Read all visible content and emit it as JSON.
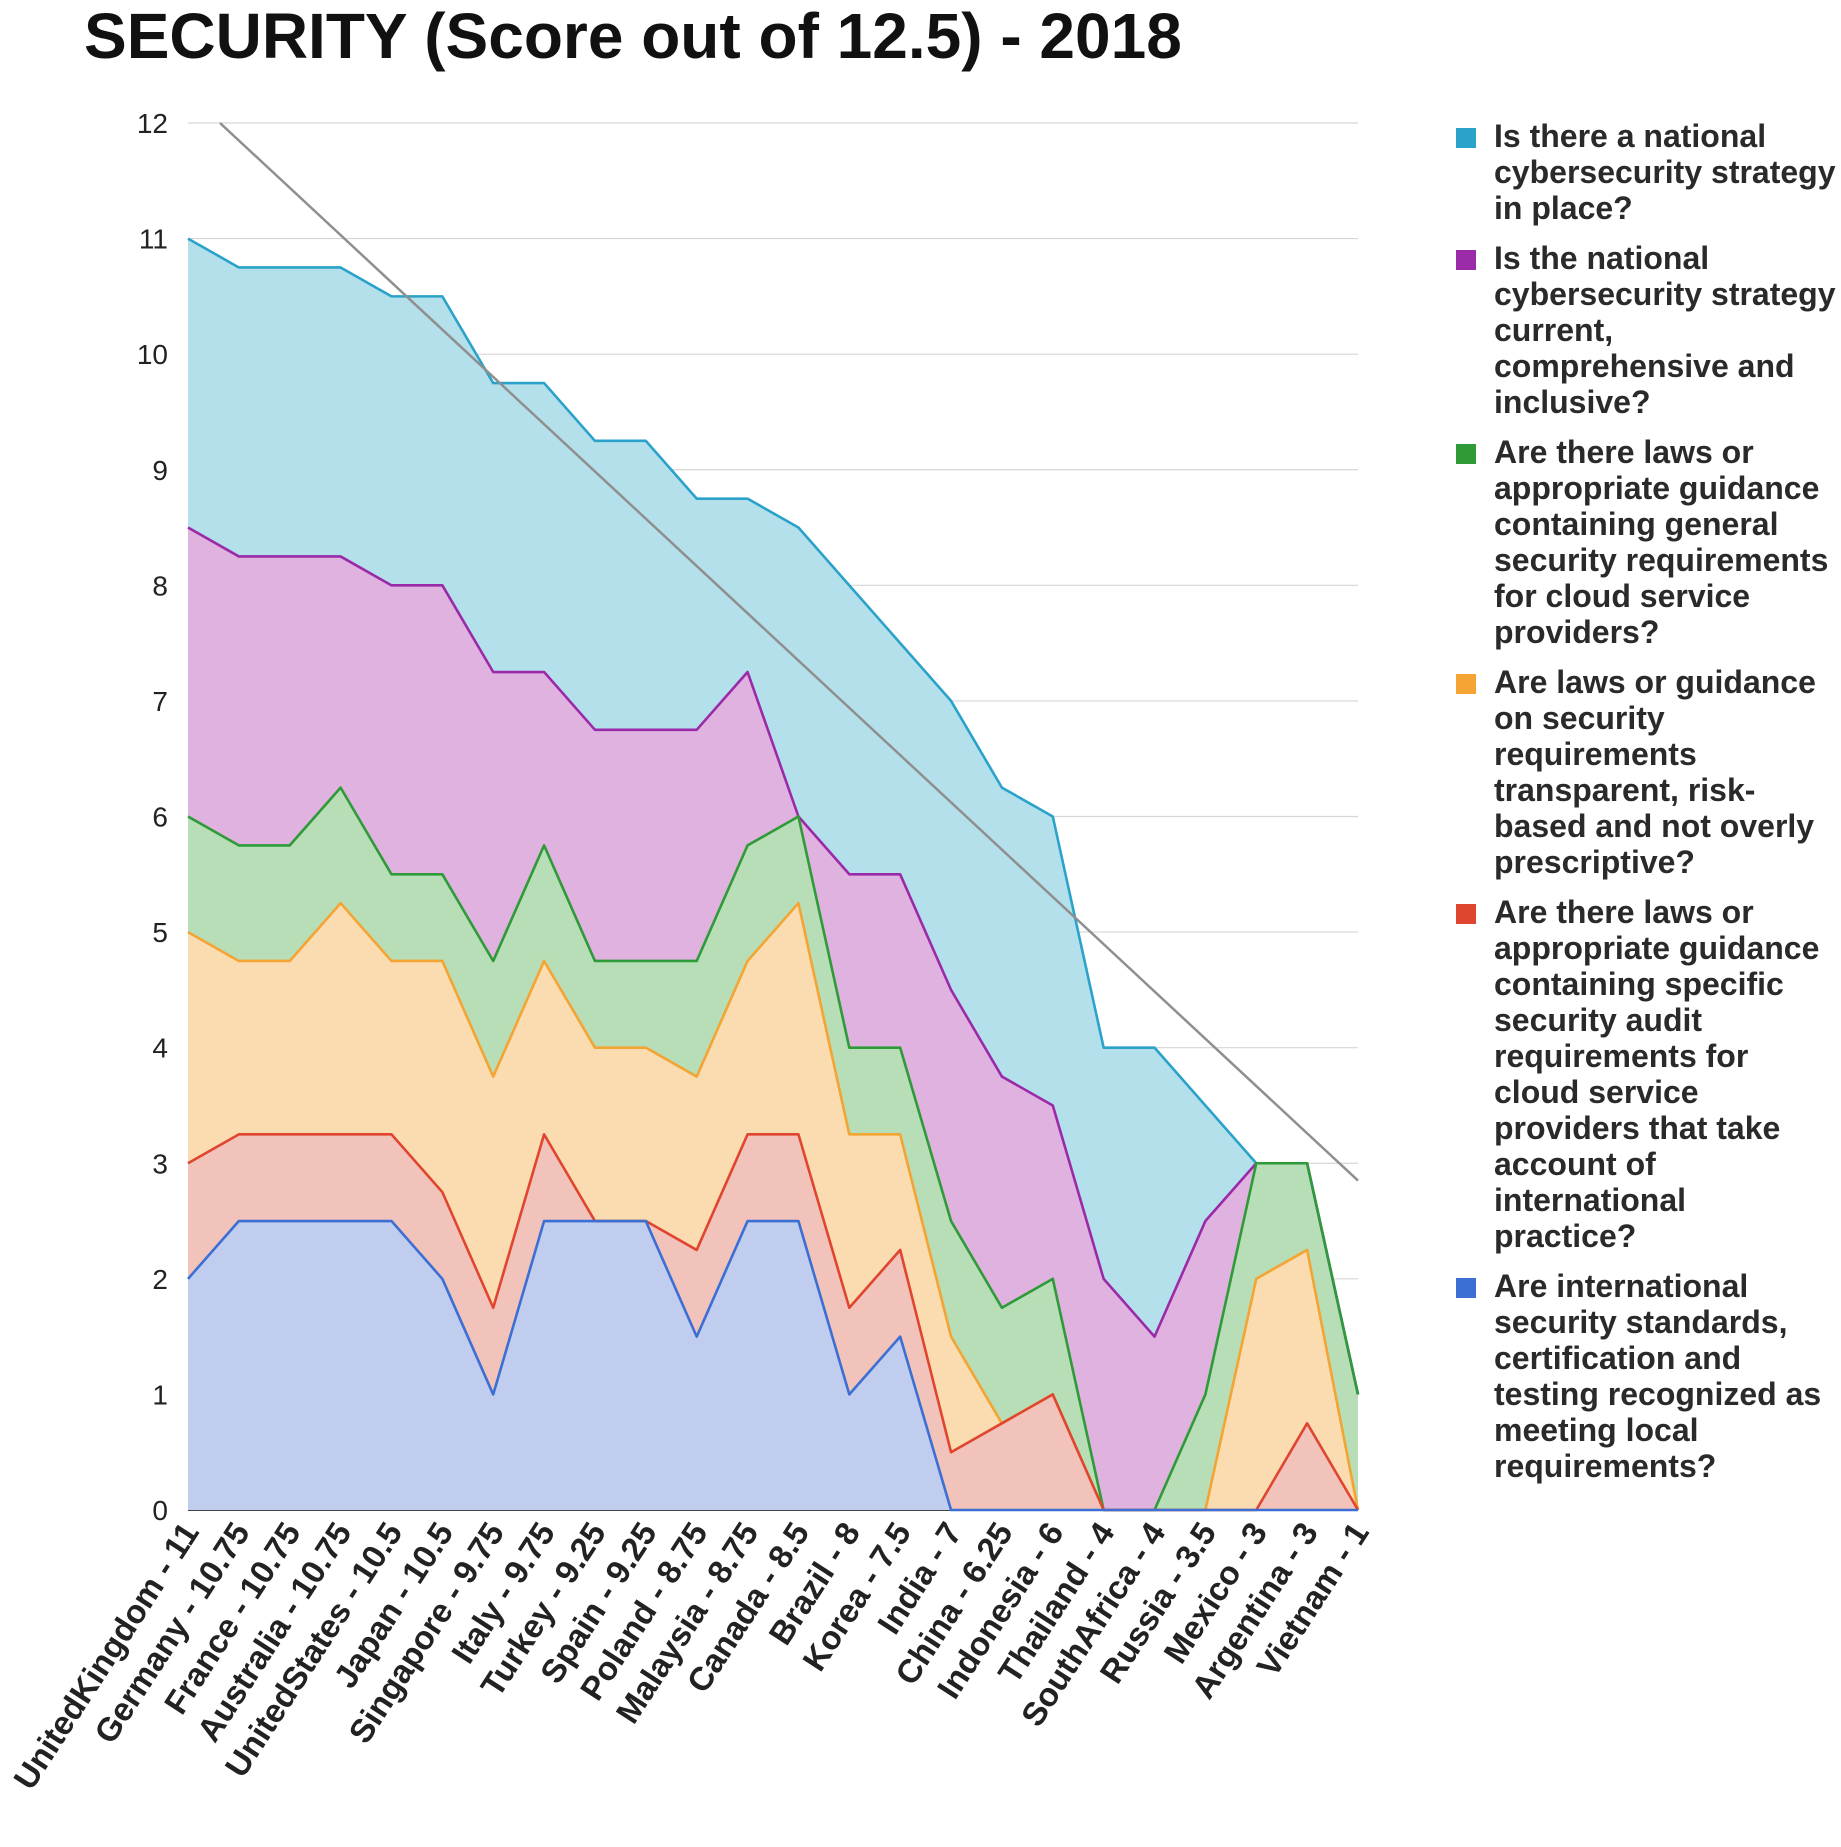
{
  "chart_data": {
    "type": "area",
    "stacked": false,
    "title": "SECURITY (Score out of 12.5) - 2018",
    "xlabel": "",
    "ylabel": "",
    "ylim": [
      0,
      12
    ],
    "yticks": [
      0,
      1,
      2,
      3,
      4,
      5,
      6,
      7,
      8,
      9,
      10,
      11,
      12
    ],
    "grid": true,
    "legend_position": "right",
    "categories": [
      "UnitedKingdom - 11",
      "Germany - 10.75",
      "France - 10.75",
      "Australia - 10.75",
      "UnitedStates - 10.5",
      "Japan - 10.5",
      "Singapore - 9.75",
      "Italy - 9.75",
      "Turkey - 9.25",
      "Spain - 9.25",
      "Poland - 8.75",
      "Malaysia - 8.75",
      "Canada - 8.5",
      "Brazil - 8",
      "Korea - 7.5",
      "India - 7",
      "China - 6.25",
      "Indonesia - 6",
      "Thailand - 4",
      "SouthAfrica - 4",
      "Russia - 3.5",
      "Mexico - 3",
      "Argentina - 3",
      "Vietnam - 1"
    ],
    "series": [
      {
        "name": "Is there a national cybersecurity strategy in place?",
        "color": "#2aa2c9",
        "fill": "#b4e0ec",
        "values": [
          11,
          10.75,
          10.75,
          10.75,
          10.5,
          10.5,
          9.75,
          9.75,
          9.25,
          9.25,
          8.75,
          8.75,
          8.5,
          8,
          7.5,
          7,
          6.25,
          6,
          4,
          4,
          3.5,
          3,
          3,
          1
        ]
      },
      {
        "name": "Is the national cybersecurity strategy current, comprehensive and inclusive?",
        "color": "#9b2aa8",
        "fill": "#dfb2df",
        "values": [
          8.5,
          8.25,
          8.25,
          8.25,
          8,
          8,
          7.25,
          7.25,
          6.75,
          6.75,
          6.75,
          7.25,
          6,
          5.5,
          5.5,
          4.5,
          3.75,
          3.5,
          2,
          1.5,
          2.5,
          3,
          3,
          1
        ]
      },
      {
        "name": "Are there laws or appropriate guidance containing general security requirements for cloud service providers?",
        "color": "#2e9a38",
        "fill": "#b7deb7",
        "values": [
          6,
          5.75,
          5.75,
          6.25,
          5.5,
          5.5,
          4.75,
          5.75,
          4.75,
          4.75,
          4.75,
          5.75,
          6,
          4,
          4,
          2.5,
          1.75,
          2,
          0,
          0,
          1,
          3,
          3,
          1
        ]
      },
      {
        "name": "Are laws or guidance on security requirements transparent, risk-based and not overly prescriptive?",
        "color": "#f4a433",
        "fill": "#fbdcb0",
        "values": [
          5,
          4.75,
          4.75,
          5.25,
          4.75,
          4.75,
          3.75,
          4.75,
          4,
          4,
          3.75,
          4.75,
          5.25,
          3.25,
          3.25,
          1.5,
          0.75,
          1,
          0,
          0,
          0,
          2,
          2.25,
          0
        ]
      },
      {
        "name": "Are there laws or appropriate guidance containing specific security audit requirements for cloud service providers that take account of international practice?",
        "color": "#e0452f",
        "fill": "#f2c3bb",
        "values": [
          3,
          3.25,
          3.25,
          3.25,
          3.25,
          2.75,
          1.75,
          3.25,
          2.5,
          2.5,
          2.25,
          3.25,
          3.25,
          1.75,
          2.25,
          0.5,
          0.75,
          1,
          0,
          0,
          0,
          0,
          0.75,
          0
        ]
      },
      {
        "name": "Are international security standards, certification and testing recognized as meeting local requirements?",
        "color": "#3b6fd4",
        "fill": "#c0cdee",
        "values": [
          2,
          2.5,
          2.5,
          2.5,
          2.5,
          2,
          1,
          2.5,
          2.5,
          2.5,
          1.5,
          2.5,
          2.5,
          1,
          1.5,
          0,
          0,
          0,
          0,
          0,
          0,
          0,
          0,
          0
        ]
      }
    ],
    "trendline": {
      "color": "#8f8f8f",
      "start": 12.0,
      "end": 2.85
    }
  }
}
